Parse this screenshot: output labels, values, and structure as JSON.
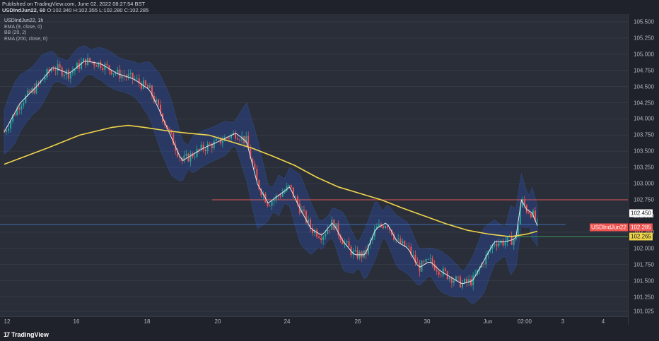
{
  "header": {
    "published": "Published on TradingView.com, June 02, 2022 08:27:54 BST",
    "symbol_tf": "USDIndJun22, 60",
    "ohlc": "O:102.340 H:102.355 L:102.280 C:102.285"
  },
  "legend": {
    "symbol": "USDIndJun22, 1h",
    "ema9": "EMA (9, close, 0)",
    "bb": "BB (20, 2)",
    "ema200": "EMA (200, close, 0)"
  },
  "price_labels": {
    "top": "102.450",
    "symbol_name": "USDIndJun22",
    "last": "102.285",
    "ema": "102.265"
  },
  "footer": {
    "brand": "TradingView",
    "logo_glyph": "17"
  },
  "colors": {
    "background": "#2a2e39",
    "bb_fill": "#2962ff",
    "ema200": "#f0d54a",
    "ema9": "#e8e8e8",
    "up": "#26a69a",
    "down": "#ef5350",
    "red_level": "#e05a5a",
    "blue_level": "#3d6fb0",
    "green_level": "#3d9a5a"
  },
  "chart_data": {
    "type": "candlestick",
    "y_ticks": [
      "105.500",
      "105.250",
      "105.000",
      "104.750",
      "104.500",
      "104.250",
      "104.000",
      "103.750",
      "103.500",
      "103.250",
      "103.000",
      "102.750",
      "102.500",
      "102.250",
      "102.000",
      "101.750",
      "101.500",
      "101.250",
      "101.025"
    ],
    "x_ticks": [
      "12",
      "16",
      "18",
      "20",
      "24",
      "26",
      "30",
      "Jun",
      "02:00",
      "3",
      "4"
    ],
    "ylim": [
      101.0,
      105.6
    ],
    "levels": {
      "red": 102.75,
      "blue": 102.37,
      "green": 102.18
    },
    "close_path": [
      [
        0,
        103.8
      ],
      [
        3,
        104.25
      ],
      [
        6,
        104.5
      ],
      [
        9,
        104.8
      ],
      [
        12,
        104.7
      ],
      [
        15,
        104.9
      ],
      [
        18,
        104.85
      ],
      [
        21,
        104.7
      ],
      [
        24,
        104.62
      ],
      [
        27,
        104.45
      ],
      [
        29,
        104.1
      ],
      [
        31,
        103.72
      ],
      [
        33,
        103.35
      ],
      [
        35,
        103.45
      ],
      [
        37,
        103.55
      ],
      [
        39,
        103.62
      ],
      [
        41,
        103.7
      ],
      [
        43,
        103.78
      ],
      [
        45,
        103.65
      ],
      [
        47,
        103.0
      ],
      [
        49,
        102.7
      ],
      [
        51,
        102.82
      ],
      [
        53,
        102.95
      ],
      [
        55,
        102.6
      ],
      [
        57,
        102.3
      ],
      [
        59,
        102.2
      ],
      [
        61,
        102.4
      ],
      [
        63,
        102.1
      ],
      [
        65,
        101.9
      ],
      [
        67,
        101.9
      ],
      [
        69,
        102.3
      ],
      [
        71,
        102.4
      ],
      [
        73,
        102.1
      ],
      [
        75,
        102.0
      ],
      [
        77,
        101.7
      ],
      [
        79,
        101.8
      ],
      [
        81,
        101.65
      ],
      [
        83,
        101.55
      ],
      [
        85,
        101.45
      ],
      [
        87,
        101.5
      ],
      [
        89,
        101.8
      ],
      [
        91,
        102.1
      ],
      [
        93,
        102.1
      ],
      [
        95,
        102.15
      ],
      [
        96,
        102.75
      ],
      [
        97,
        102.6
      ],
      [
        98,
        102.55
      ],
      [
        99,
        102.35
      ]
    ],
    "ema200_path": [
      [
        0,
        103.3
      ],
      [
        8,
        103.55
      ],
      [
        14,
        103.75
      ],
      [
        20,
        103.87
      ],
      [
        23,
        103.9
      ],
      [
        26,
        103.87
      ],
      [
        30,
        103.82
      ],
      [
        34,
        103.78
      ],
      [
        38,
        103.75
      ],
      [
        42,
        103.65
      ],
      [
        46,
        103.55
      ],
      [
        50,
        103.42
      ],
      [
        54,
        103.28
      ],
      [
        58,
        103.1
      ],
      [
        62,
        102.95
      ],
      [
        66,
        102.85
      ],
      [
        70,
        102.75
      ],
      [
        74,
        102.62
      ],
      [
        78,
        102.5
      ],
      [
        82,
        102.38
      ],
      [
        86,
        102.28
      ],
      [
        90,
        102.22
      ],
      [
        94,
        102.18
      ],
      [
        97,
        102.22
      ],
      [
        99,
        102.265
      ]
    ]
  }
}
